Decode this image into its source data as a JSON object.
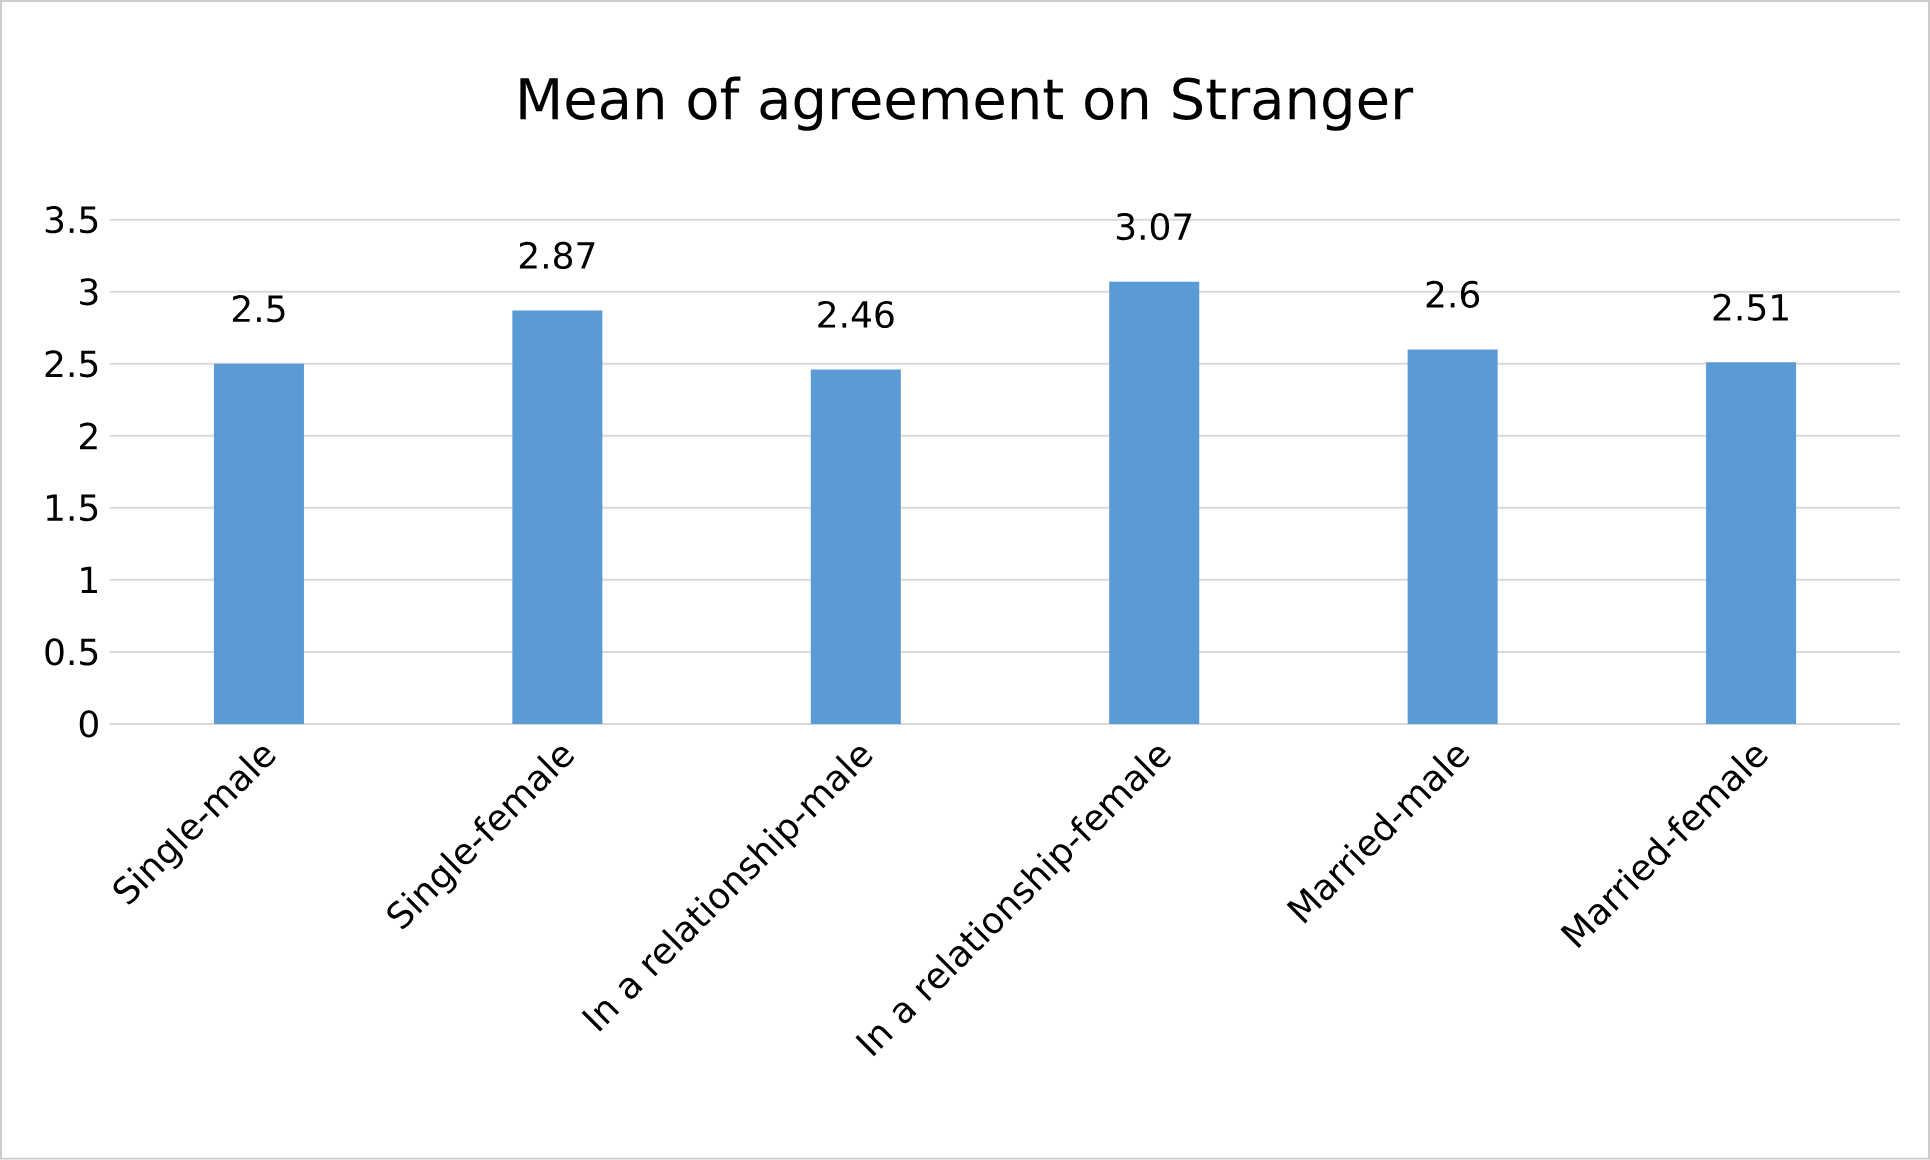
{
  "chart_data": {
    "type": "bar",
    "title": "Mean of agreement on Stranger",
    "categories": [
      "Single-male",
      "Single-female",
      "In a relationship-male",
      "In a relationship-female",
      "Married-male",
      "Married-female"
    ],
    "values": [
      2.5,
      2.87,
      2.46,
      3.07,
      2.6,
      2.51
    ],
    "color": "#5b9bd5",
    "ylim": [
      0,
      3.5
    ],
    "yticks": [
      0,
      0.5,
      1,
      1.5,
      2,
      2.5,
      3,
      3.5
    ],
    "grid": "y",
    "data_labels": true
  }
}
